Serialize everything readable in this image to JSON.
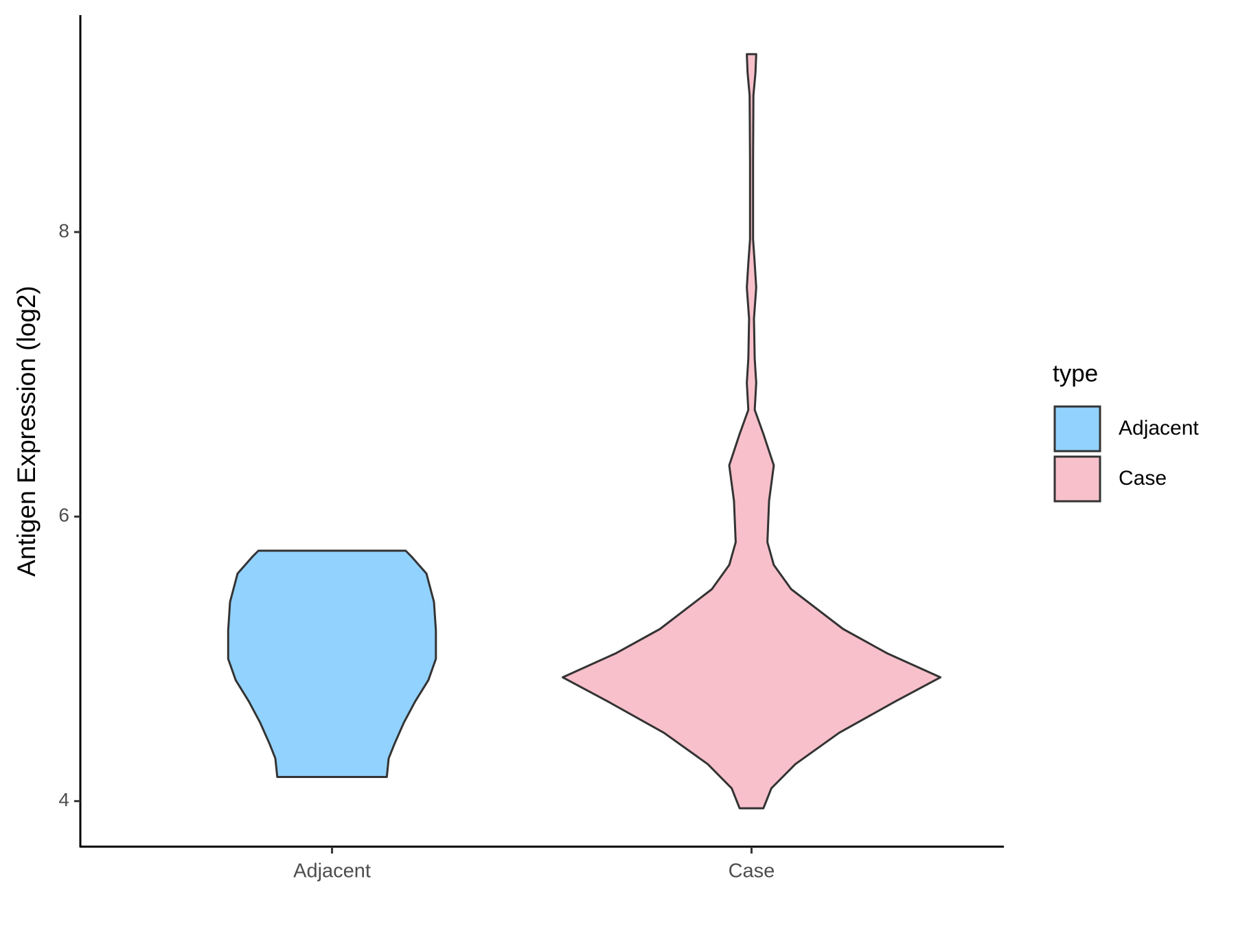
{
  "chart_data": {
    "type": "violin",
    "y_label": "Antigen Expression (log2)",
    "categories": [
      "Adjacent",
      "Case"
    ],
    "legend_title": "type",
    "legend_position": "right",
    "ylim": [
      3.68,
      9.52
    ],
    "yticks": [
      4,
      6,
      8
    ],
    "series": [
      {
        "name": "Adjacent",
        "color": "#92d2fe",
        "y": [
          5.76,
          5.72,
          5.6,
          5.4,
          5.2,
          5.0,
          4.85,
          4.7,
          4.55,
          4.4,
          4.3,
          4.17
        ],
        "density": [
          0.39,
          0.42,
          0.5,
          0.54,
          0.55,
          0.55,
          0.51,
          0.44,
          0.38,
          0.33,
          0.3,
          0.29
        ]
      },
      {
        "name": "Case",
        "color": "#f7c0ca",
        "y": [
          9.25,
          9.12,
          8.96,
          8.51,
          7.95,
          7.78,
          7.61,
          7.39,
          7.11,
          6.94,
          6.75,
          6.58,
          6.36,
          6.11,
          5.82,
          5.66,
          5.49,
          5.21,
          5.04,
          4.87,
          4.7,
          4.48,
          4.26,
          4.09,
          3.95
        ],
        "density": [
          0.025,
          0.021,
          0.01,
          0.008,
          0.008,
          0.017,
          0.025,
          0.013,
          0.017,
          0.025,
          0.017,
          0.063,
          0.118,
          0.093,
          0.084,
          0.118,
          0.21,
          0.485,
          0.717,
          1.0,
          0.76,
          0.464,
          0.232,
          0.105,
          0.063
        ]
      }
    ]
  }
}
